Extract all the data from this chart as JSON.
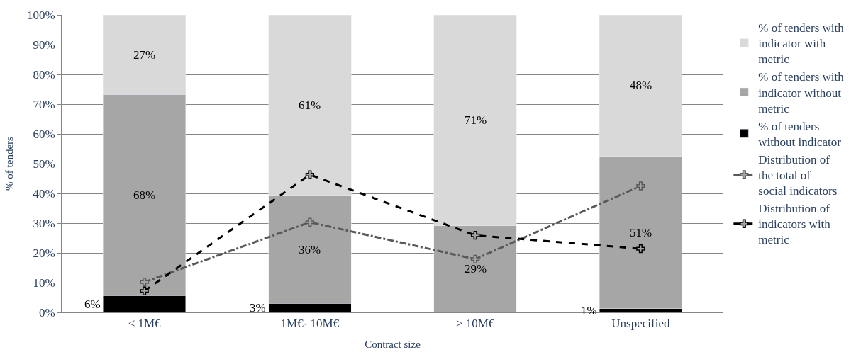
{
  "chart_data": {
    "type": "bar",
    "stacked": true,
    "xlabel": "Contract size",
    "ylabel": "% of tenders",
    "categories": [
      "< 1M€",
      "1M€- 10M€",
      "> 10M€",
      "Unspecified"
    ],
    "ylim": [
      0,
      100
    ],
    "yticks": [
      {
        "value": 0,
        "label": "0%"
      },
      {
        "value": 10,
        "label": "10%"
      },
      {
        "value": 20,
        "label": "20%"
      },
      {
        "value": 30,
        "label": "30%"
      },
      {
        "value": 40,
        "label": "40%"
      },
      {
        "value": 50,
        "label": "50%"
      },
      {
        "value": 60,
        "label": "60%"
      },
      {
        "value": 70,
        "label": "70%"
      },
      {
        "value": 80,
        "label": "80%"
      },
      {
        "value": 90,
        "label": "90%"
      },
      {
        "value": 100,
        "label": "100%"
      }
    ],
    "grid": "y",
    "legend": "right",
    "series": [
      {
        "name": "% of tenders without indicator",
        "color": "#000000",
        "values": [
          5.7,
          3.0,
          0,
          1.2
        ],
        "value_labels": [
          "6%",
          "3%",
          null,
          "1%"
        ]
      },
      {
        "name": "% of tenders with indicator without metric",
        "color": "#a6a6a6",
        "values": [
          67.6,
          36.3,
          29.1,
          51.2
        ],
        "value_labels": [
          "68%",
          "36%",
          "29%",
          "51%"
        ]
      },
      {
        "name": "% of tenders with indicator with metric",
        "color": "#d9d9d9",
        "values": [
          26.7,
          60.7,
          70.9,
          47.6
        ],
        "value_labels": [
          "27%",
          "61%",
          "71%",
          "48%"
        ]
      },
      {
        "name": "Distribution of the total of social indicators",
        "type": "line",
        "color": "#595959",
        "line_style": "dashdot",
        "marker": "cross",
        "values": [
          10.2,
          30.3,
          17.9,
          42.5
        ]
      },
      {
        "name": "Distribution of indicators with metric",
        "type": "line",
        "color": "#000000",
        "line_style": "dashed",
        "marker": "cross",
        "values": [
          7.2,
          46.3,
          25.9,
          21.4
        ]
      }
    ]
  }
}
